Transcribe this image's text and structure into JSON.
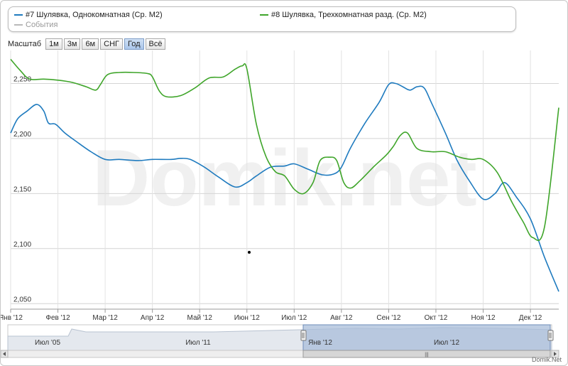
{
  "watermark": "Domik.net",
  "credit": "Domik.Net",
  "legend": {
    "items": [
      "#7 Шулявка, Однокомнатная (Ср. М2)",
      "#8 Шулявка, Трехкомнатная разд. (Ср. М2)",
      "События"
    ]
  },
  "zoom": {
    "label": "Масштаб",
    "buttons": [
      "1м",
      "3м",
      "6м",
      "СНГ",
      "Год",
      "Всё"
    ],
    "selected": "Год"
  },
  "navigator": {
    "labels": [
      "Июл '05",
      "Июл '11",
      "Янв '12",
      "Июл '12"
    ],
    "scrollbar_grip": "|||"
  },
  "colors": {
    "series1": "#1f7bbf",
    "series2": "#3fa52a",
    "grid": "#d8d8d8",
    "navigator_selection": "#a9bdd9"
  },
  "chart_data": {
    "type": "line",
    "x_tick_labels": [
      "Янв '12",
      "Фев '12",
      "Мар '12",
      "Апр '12",
      "Май '12",
      "Июн '12",
      "Июл '12",
      "Авг '12",
      "Сен '12",
      "Окт '12",
      "Ноя '12",
      "Дек '12"
    ],
    "y_tick_labels": [
      "2,050",
      "2,100",
      "2,150",
      "2,200",
      "2,250"
    ],
    "ylim": [
      2045,
      2280
    ],
    "xlim": [
      0,
      11.6
    ],
    "grid": true,
    "legend_position": "top",
    "series": [
      {
        "name": "#7 Шулявка, Однокомнатная (Ср. М2)",
        "x": [
          0,
          0.15,
          0.35,
          0.55,
          0.7,
          0.8,
          0.95,
          1.15,
          1.4,
          1.7,
          2.0,
          2.3,
          2.7,
          3.0,
          3.4,
          3.6,
          3.8,
          4.1,
          4.4,
          4.75,
          5.0,
          5.2,
          5.5,
          5.8,
          6.0,
          6.3,
          6.6,
          6.85,
          7.0,
          7.2,
          7.5,
          7.8,
          8.0,
          8.15,
          8.3,
          8.45,
          8.6,
          8.75,
          8.9,
          9.2,
          9.45,
          9.7,
          10.0,
          10.25,
          10.45,
          10.7,
          11.0,
          11.3,
          11.6
        ],
        "y": [
          2205,
          2218,
          2225,
          2231,
          2225,
          2214,
          2213,
          2205,
          2197,
          2188,
          2181,
          2181,
          2180,
          2181,
          2181,
          2182,
          2181,
          2174,
          2165,
          2156,
          2160,
          2166,
          2174,
          2175,
          2177,
          2172,
          2167,
          2168,
          2174,
          2192,
          2214,
          2233,
          2249,
          2250,
          2247,
          2244,
          2247,
          2246,
          2233,
          2205,
          2180,
          2162,
          2145,
          2150,
          2160,
          2147,
          2127,
          2092,
          2061
        ]
      },
      {
        "name": "#8 Шулявка, Трехкомнатная разд. (Ср. М2)",
        "x": [
          0,
          0.2,
          0.4,
          0.7,
          1.0,
          1.3,
          1.6,
          1.8,
          1.9,
          2.05,
          2.3,
          2.6,
          2.9,
          3.0,
          3.15,
          3.3,
          3.6,
          3.9,
          4.2,
          4.5,
          4.75,
          4.9,
          5.0,
          5.2,
          5.4,
          5.6,
          5.8,
          6.0,
          6.2,
          6.4,
          6.55,
          6.75,
          6.9,
          7.05,
          7.2,
          7.4,
          7.7,
          7.95,
          8.1,
          8.25,
          8.4,
          8.6,
          8.9,
          9.2,
          9.5,
          9.75,
          10.0,
          10.3,
          10.6,
          10.85,
          11.05,
          11.3,
          11.6
        ],
        "y": [
          2272,
          2262,
          2254,
          2254,
          2253,
          2251,
          2247,
          2244,
          2249,
          2258,
          2260,
          2260,
          2259,
          2256,
          2243,
          2238,
          2239,
          2246,
          2255,
          2256,
          2263,
          2266,
          2263,
          2213,
          2184,
          2170,
          2166,
          2154,
          2150,
          2160,
          2180,
          2183,
          2180,
          2160,
          2155,
          2162,
          2175,
          2185,
          2193,
          2203,
          2205,
          2191,
          2188,
          2188,
          2183,
          2181,
          2181,
          2169,
          2143,
          2124,
          2110,
          2120,
          2228
        ]
      }
    ]
  }
}
